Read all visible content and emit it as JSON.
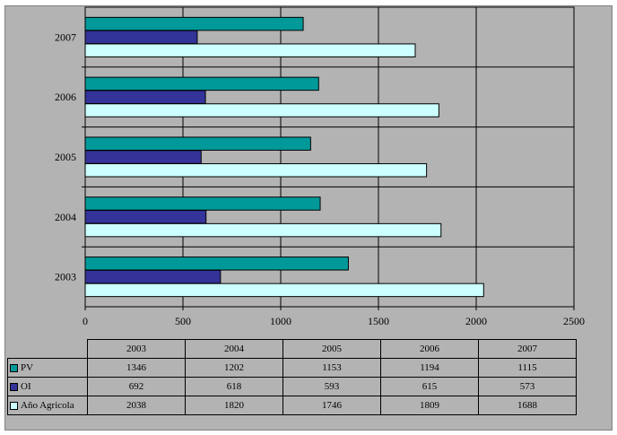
{
  "chart_data": {
    "type": "bar",
    "orientation": "horizontal",
    "categories": [
      "2003",
      "2004",
      "2005",
      "2006",
      "2007"
    ],
    "series": [
      {
        "name": "PV",
        "values": [
          1346,
          1202,
          1153,
          1194,
          1115
        ],
        "color": "#009999"
      },
      {
        "name": "OI",
        "values": [
          692,
          618,
          593,
          615,
          573
        ],
        "color": "#333399"
      },
      {
        "name": "Año Agricola",
        "values": [
          2038,
          1820,
          1746,
          1809,
          1688
        ],
        "color": "#ccffff"
      }
    ],
    "xlim": [
      0,
      2500
    ],
    "xticks": [
      "0",
      "500",
      "1000",
      "1500",
      "2000",
      "2500"
    ],
    "grid": true,
    "legend": "data-table-below",
    "plot_background": "#b3b3b3"
  },
  "table": {
    "header": [
      "2003",
      "2004",
      "2005",
      "2006",
      "2007"
    ],
    "rows": [
      {
        "label": "PV",
        "values": [
          "1346",
          "1202",
          "1153",
          "1194",
          "1115"
        ]
      },
      {
        "label": "OI",
        "values": [
          "692",
          "618",
          "593",
          "615",
          "573"
        ]
      },
      {
        "label": "Año Agricola",
        "values": [
          "2038",
          "1820",
          "1746",
          "1809",
          "1688"
        ]
      }
    ]
  }
}
